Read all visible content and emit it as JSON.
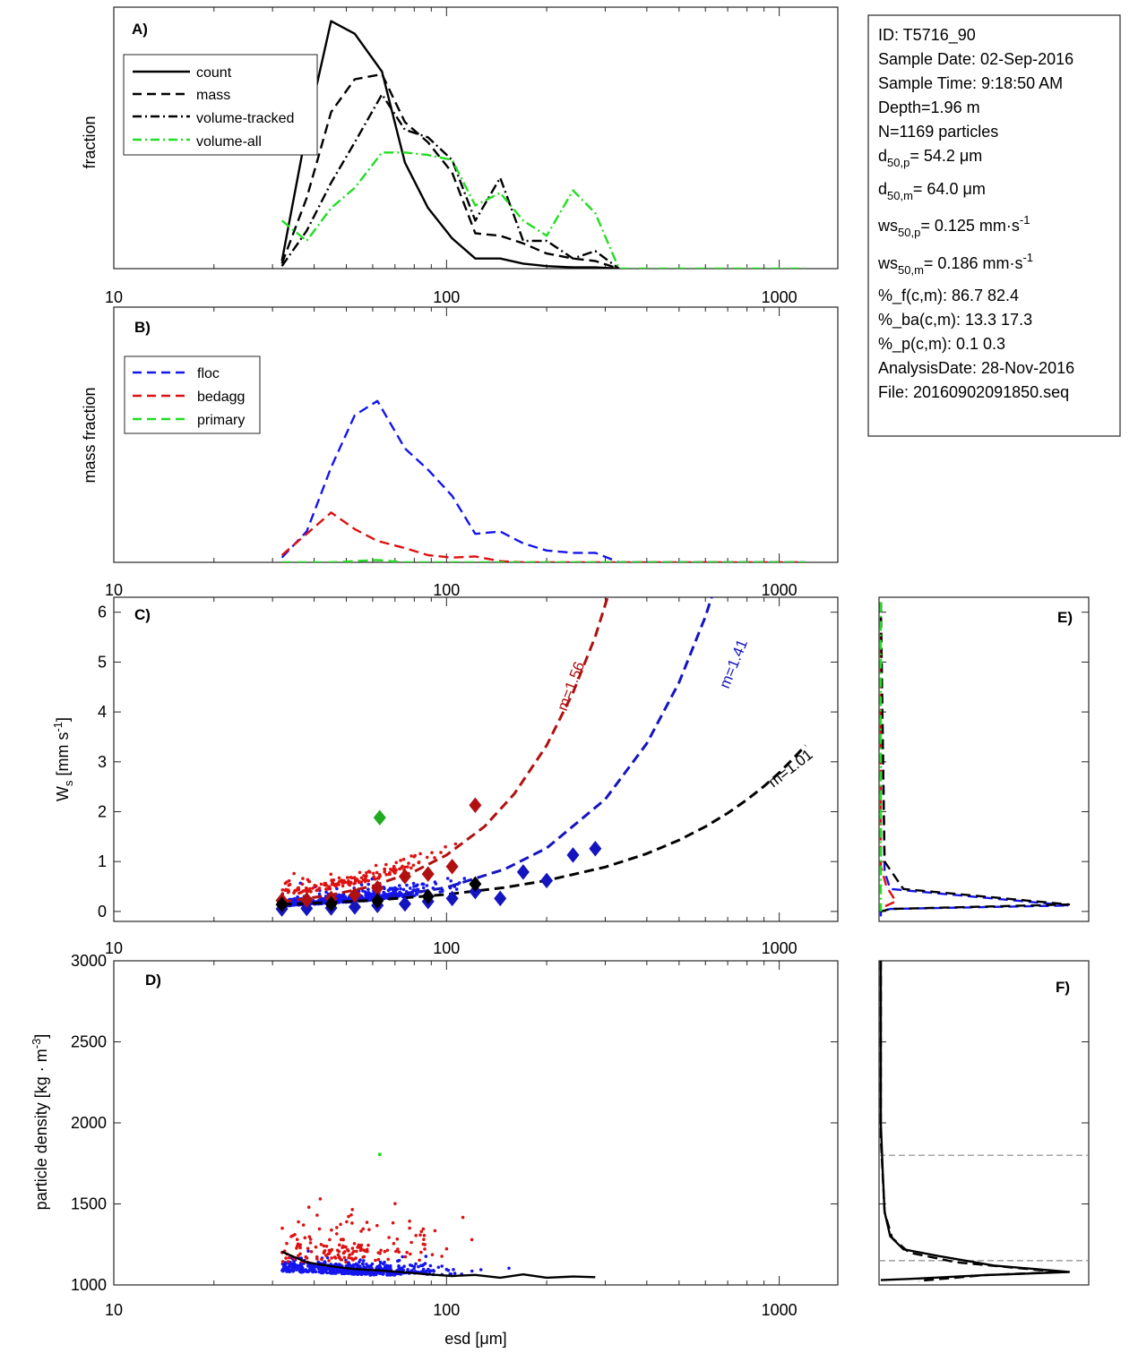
{
  "figure": {
    "info_box": [
      "ID: T5716_90",
      "Sample Date: 02-Sep-2016",
      "Sample Time:  9:18:50 AM",
      "Depth=1.96 m",
      "N=1169 particles",
      "d50,p=  54.2 μm",
      "d50,m=  64.0 μm",
      "ws50,p= 0.125 mm·s-1",
      "ws50,m= 0.186 mm·s-1",
      "%_f(c,m): 86.7 82.4",
      "%_ba(c,m): 13.3 17.3",
      "%_p(c,m): 0.1 0.3",
      "AnalysisDate: 28-Nov-2016",
      "File: 20160902091850.seq"
    ]
  },
  "chart_data": [
    {
      "panel": "A)",
      "type": "line",
      "ylabel": "fraction",
      "xscale": "log",
      "xlim": [
        10,
        1500
      ],
      "ylim": [
        0,
        1
      ],
      "xticks": [
        10,
        100,
        1000
      ],
      "xticklabels": [
        "10",
        "100",
        "1000"
      ],
      "legend_position": "top-left",
      "series": [
        {
          "name": "count",
          "style": "solid",
          "color": "#000000",
          "x": [
            32,
            38,
            45,
            53,
            64,
            75,
            88,
            104,
            122,
            145,
            170,
            200,
            240,
            280,
            330
          ],
          "y": [
            0.03,
            0.55,
            0.98,
            0.93,
            0.78,
            0.42,
            0.24,
            0.12,
            0.04,
            0.04,
            0.02,
            0.01,
            0.005,
            0.005,
            0.0
          ]
        },
        {
          "name": "mass",
          "style": "dash",
          "color": "#000000",
          "x": [
            32,
            38,
            45,
            53,
            64,
            75,
            88,
            104,
            122,
            145,
            170,
            200,
            240,
            280,
            330
          ],
          "y": [
            0.02,
            0.28,
            0.62,
            0.75,
            0.77,
            0.58,
            0.5,
            0.38,
            0.14,
            0.13,
            0.1,
            0.06,
            0.04,
            0.03,
            0.0
          ]
        },
        {
          "name": "volume-tracked",
          "style": "dashdot",
          "color": "#000000",
          "x": [
            32,
            38,
            45,
            53,
            64,
            75,
            88,
            104,
            122,
            145,
            170,
            200,
            240,
            280,
            330
          ],
          "y": [
            0.01,
            0.15,
            0.34,
            0.5,
            0.69,
            0.55,
            0.52,
            0.43,
            0.19,
            0.36,
            0.11,
            0.11,
            0.04,
            0.07,
            0.0
          ]
        },
        {
          "name": "volume-all",
          "style": "dashdot",
          "color": "#22dd22",
          "x": [
            32,
            38,
            45,
            53,
            64,
            75,
            88,
            104,
            122,
            145,
            170,
            200,
            240,
            280,
            330,
            400,
            500,
            650,
            800,
            1000,
            1200
          ],
          "y": [
            0.19,
            0.11,
            0.24,
            0.32,
            0.46,
            0.46,
            0.45,
            0.43,
            0.25,
            0.3,
            0.19,
            0.13,
            0.31,
            0.22,
            0.0,
            0.0,
            0.0,
            0.0,
            0.0,
            0.0,
            0.0
          ]
        }
      ]
    },
    {
      "panel": "B)",
      "type": "line",
      "ylabel": "mass fraction",
      "xscale": "log",
      "xlim": [
        10,
        1500
      ],
      "ylim": [
        0,
        1
      ],
      "xticks": [
        10,
        100,
        1000
      ],
      "xticklabels": [
        "10",
        "100",
        "1000"
      ],
      "legend_position": "top-left",
      "series": [
        {
          "name": "floc",
          "style": "dash",
          "color": "#1515ee",
          "x": [
            32,
            38,
            45,
            53,
            62,
            75,
            88,
            104,
            122,
            145,
            170,
            200,
            240,
            280,
            330,
            400,
            500,
            650,
            800,
            1000,
            1200
          ],
          "y": [
            0.02,
            0.13,
            0.4,
            0.62,
            0.68,
            0.48,
            0.39,
            0.28,
            0.12,
            0.13,
            0.08,
            0.05,
            0.04,
            0.04,
            0.0,
            0.0,
            0.0,
            0.0,
            0.0,
            0.0,
            0.0
          ]
        },
        {
          "name": "bedagg",
          "style": "dash",
          "color": "#dd1111",
          "x": [
            32,
            38,
            45,
            53,
            62,
            75,
            88,
            104,
            122,
            145,
            170,
            200,
            240,
            280,
            330,
            400,
            500,
            650,
            800,
            1000,
            1200
          ],
          "y": [
            0.03,
            0.12,
            0.21,
            0.14,
            0.09,
            0.06,
            0.03,
            0.02,
            0.025,
            0.005,
            0.0,
            0.0,
            0.0,
            0.0,
            0.0,
            0.0,
            0.0,
            0.0,
            0.0,
            0.0,
            0.0
          ]
        },
        {
          "name": "primary",
          "style": "dash",
          "color": "#22dd22",
          "x": [
            32,
            45,
            62,
            75,
            100,
            200,
            330,
            500,
            800,
            1200
          ],
          "y": [
            0.0,
            0.0,
            0.01,
            0.0,
            0.0,
            0.0,
            0.0,
            0.0,
            0.0,
            0.0
          ]
        }
      ]
    },
    {
      "panel": "C)",
      "type": "scatter",
      "ylabel": "Ws [mm s-1]",
      "xscale": "log",
      "xlim": [
        10,
        1500
      ],
      "ylim": [
        -0.2,
        6.3
      ],
      "yticks": [
        0,
        1,
        2,
        3,
        4,
        5,
        6
      ],
      "yticklabels": [
        "0",
        "1",
        "2",
        "3",
        "4",
        "5",
        "6"
      ],
      "xticks": [
        10,
        100,
        1000
      ],
      "xticklabels": [
        "10",
        "100",
        "1000"
      ],
      "fits": [
        {
          "label": "m=1.56",
          "color": "#b01010",
          "x": [
            32,
            45,
            60,
            80,
            100,
            130,
            160,
            200,
            240,
            280,
            320
          ],
          "y": [
            0.19,
            0.33,
            0.51,
            0.8,
            1.13,
            1.7,
            2.36,
            3.33,
            4.39,
            5.51,
            6.75
          ]
        },
        {
          "label": "m=1.41",
          "color": "#1515c0",
          "x": [
            32,
            60,
            100,
            150,
            200,
            300,
            400,
            500,
            600,
            700,
            800,
            900,
            1000
          ],
          "y": [
            0.1,
            0.24,
            0.48,
            0.85,
            1.27,
            2.25,
            3.37,
            4.59,
            5.91,
            7.3,
            8.8,
            10.4,
            12.0
          ]
        },
        {
          "label": "m=1.01",
          "color": "#000000",
          "x": [
            32,
            60,
            100,
            150,
            200,
            300,
            400,
            500,
            600,
            700,
            800,
            900,
            1000,
            1100,
            1200
          ],
          "y": [
            0.14,
            0.22,
            0.34,
            0.48,
            0.62,
            0.89,
            1.16,
            1.43,
            1.7,
            1.97,
            2.24,
            2.51,
            2.78,
            3.06,
            3.33
          ]
        }
      ],
      "markers": [
        {
          "group": "floc",
          "color": "#1515c0",
          "x": [
            32,
            38,
            45,
            53,
            62,
            75,
            88,
            104,
            122,
            145,
            170,
            200,
            240,
            280
          ],
          "y": [
            0.05,
            0.06,
            0.07,
            0.09,
            0.12,
            0.15,
            0.2,
            0.26,
            0.4,
            0.26,
            0.79,
            0.62,
            1.13,
            1.26
          ]
        },
        {
          "group": "bedagg",
          "color": "#b01010",
          "x": [
            32,
            38,
            45,
            53,
            62,
            75,
            88,
            104,
            122
          ],
          "y": [
            0.22,
            0.23,
            0.26,
            0.33,
            0.47,
            0.7,
            0.75,
            0.9,
            2.13
          ]
        },
        {
          "group": "all",
          "color": "#000000",
          "x": [
            32,
            45,
            62,
            88,
            122
          ],
          "y": [
            0.14,
            0.15,
            0.21,
            0.3,
            0.55
          ]
        },
        {
          "group": "primary",
          "color": "#22aa22",
          "x": [
            63
          ],
          "y": [
            1.88
          ]
        }
      ],
      "scatter": {
        "floc_count": 560,
        "bedagg_count": 160
      }
    },
    {
      "panel": "D)",
      "type": "scatter",
      "xlabel": "esd [μm]",
      "ylabel": "particle density [kg · m-3]",
      "xscale": "log",
      "xlim": [
        10,
        1500
      ],
      "ylim": [
        1000,
        3000
      ],
      "yticks": [
        1000,
        1500,
        2000,
        2500,
        3000
      ],
      "yticklabels": [
        "1000",
        "1500",
        "2000",
        "2500",
        "3000"
      ],
      "xticks": [
        10,
        100,
        1000
      ],
      "xticklabels": [
        "10",
        "100",
        "1000"
      ],
      "mean_line": {
        "x": [
          32,
          38,
          45,
          53,
          62,
          75,
          88,
          104,
          122,
          145,
          170,
          200,
          240,
          280
        ],
        "y": [
          1205,
          1140,
          1115,
          1098,
          1090,
          1078,
          1065,
          1055,
          1062,
          1045,
          1065,
          1045,
          1052,
          1048
        ]
      },
      "scatter": {
        "floc_count": 560,
        "bedagg_count": 160
      },
      "primary_point": {
        "x": 63,
        "y": 1805
      }
    },
    {
      "panel": "E)",
      "type": "line",
      "description_axes": "settling velocity distribution (shares y-axis with C)",
      "ylim": [
        -0.2,
        6.3
      ],
      "series": [
        {
          "group": "floc",
          "color": "#1515ee",
          "style": "dash",
          "x": [
            0.0,
            0.02,
            0.05,
            1.0,
            0.05,
            0.0,
            0.0
          ],
          "y": [
            6.2,
            0.8,
            0.45,
            0.12,
            0.05,
            0.0,
            -0.1
          ]
        },
        {
          "group": "bedagg",
          "color": "#dd1111",
          "style": "dash",
          "x": [
            0.0,
            0.0,
            0.03,
            0.08,
            0.02,
            0.0
          ],
          "y": [
            6.2,
            0.9,
            0.5,
            0.2,
            0.1,
            0.0
          ]
        },
        {
          "group": "all",
          "color": "#000000",
          "style": "dash",
          "x": [
            0.0,
            0.02,
            0.12,
            1.0,
            0.05,
            0.0
          ],
          "y": [
            6.2,
            1.0,
            0.45,
            0.14,
            0.05,
            0.0
          ]
        },
        {
          "group": "primary",
          "color": "#22dd22",
          "style": "dashdot",
          "x": [
            0.0,
            0.0
          ],
          "y": [
            6.2,
            0.0
          ]
        }
      ]
    },
    {
      "panel": "F)",
      "type": "line",
      "description_axes": "particle density distribution (shares y-axis with D)",
      "ylim": [
        1000,
        3000
      ],
      "reference_lines": [
        1800,
        1150
      ],
      "series": [
        {
          "style": "solid",
          "color": "#000000",
          "x": [
            0.0,
            0.0,
            0.01,
            0.02,
            0.05,
            0.12,
            0.3,
            0.6,
            1.0,
            0.55,
            0.2,
            0.0
          ],
          "y": [
            3000,
            2000,
            1700,
            1450,
            1300,
            1220,
            1180,
            1120,
            1080,
            1060,
            1040,
            1030
          ]
        },
        {
          "style": "dash",
          "color": "#000000",
          "x": [
            0.0,
            0.0,
            0.02,
            0.06,
            0.15,
            0.4,
            0.95,
            0.55,
            0.2
          ],
          "y": [
            3000,
            1900,
            1450,
            1290,
            1200,
            1140,
            1080,
            1060,
            1025
          ]
        }
      ]
    }
  ]
}
